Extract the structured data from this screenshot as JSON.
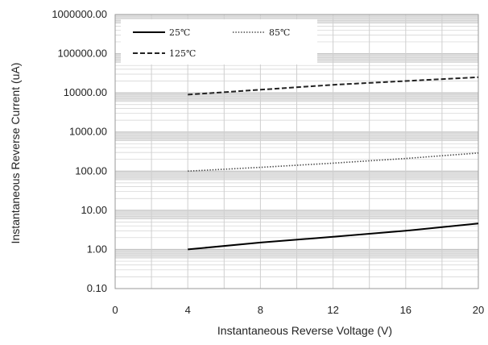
{
  "chart_data": {
    "type": "line",
    "xlabel": "Instantaneous  Reverse Voltage (V)",
    "ylabel": "Instantaneous Reverse Current (uA)",
    "x_ticks": [
      "0",
      "4",
      "8",
      "12",
      "16",
      "20"
    ],
    "y_ticks": [
      "0.10",
      "1.00",
      "10.00",
      "100.00",
      "1000.00",
      "10000.00",
      "100000.00",
      "1000000.00"
    ],
    "xlim": [
      0,
      20
    ],
    "ylim": [
      0.1,
      1000000
    ],
    "y_scale": "log",
    "grid": true,
    "legend_position": "top-left",
    "series": [
      {
        "name": "25℃",
        "style": "solid",
        "color": "#000000",
        "x": [
          4,
          8,
          12,
          16,
          20
        ],
        "y": [
          1.0,
          1.5,
          2.1,
          3.0,
          4.6
        ]
      },
      {
        "name": "85℃",
        "style": "dotted",
        "color": "#444444",
        "x": [
          4,
          8,
          12,
          16,
          20
        ],
        "y": [
          100,
          125,
          160,
          210,
          290
        ]
      },
      {
        "name": "125℃",
        "style": "dashed",
        "color": "#222222",
        "x": [
          4,
          8,
          12,
          16,
          20
        ],
        "y": [
          9000,
          12000,
          16000,
          20000,
          25000
        ]
      }
    ]
  }
}
